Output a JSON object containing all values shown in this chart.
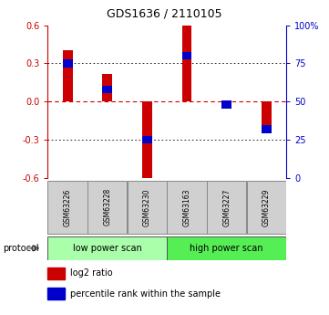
{
  "title": "GDS1636 / 2110105",
  "samples": [
    "GSM63226",
    "GSM63228",
    "GSM63230",
    "GSM63163",
    "GSM63227",
    "GSM63229"
  ],
  "log2_ratio": [
    0.4,
    0.22,
    -0.6,
    0.6,
    -0.03,
    -0.22
  ],
  "percentile_rank": [
    75,
    58,
    25,
    80,
    48,
    32
  ],
  "groups": [
    {
      "label": "low power scan",
      "indices": [
        0,
        1,
        2
      ],
      "color": "#aaffaa"
    },
    {
      "label": "high power scan",
      "indices": [
        3,
        4,
        5
      ],
      "color": "#55ee55"
    }
  ],
  "ylim": [
    -0.6,
    0.6
  ],
  "yticks_left": [
    -0.6,
    -0.3,
    0.0,
    0.3,
    0.6
  ],
  "yticks_right": [
    0,
    25,
    50,
    75,
    100
  ],
  "bar_color": "#cc0000",
  "blue_color": "#0000cc",
  "zero_line_color": "#cc0000",
  "bg_color": "#ffffff",
  "protocol_label": "protocol",
  "bar_width": 0.25,
  "blue_marker_size": 0.06
}
